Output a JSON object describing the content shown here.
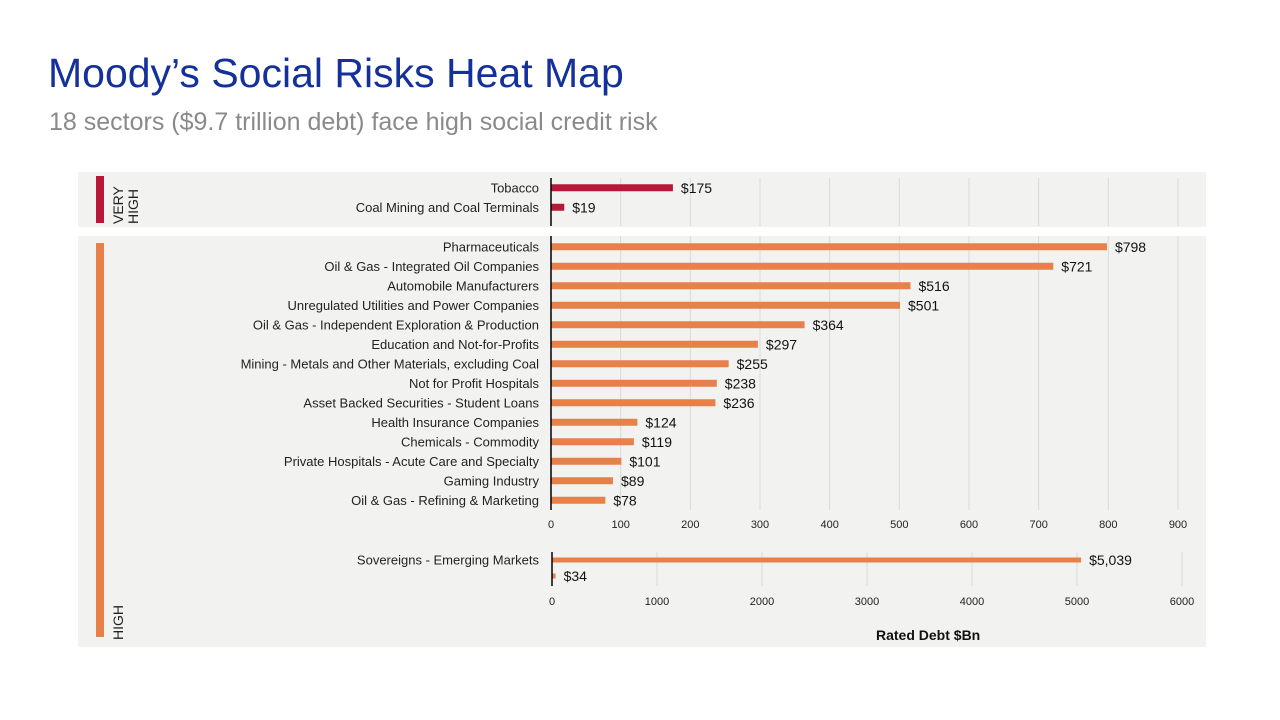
{
  "title": "Moody’s Social Risks Heat Map",
  "subtitle": "18 sectors ($9.7 trillion debt) face high social credit risk",
  "tiers": [
    {
      "label": "VERY\nHIGH",
      "color": "#b8173a"
    },
    {
      "label": "HIGH",
      "color": "#e8804a"
    }
  ],
  "colors": {
    "very_high": "#b8173a",
    "high": "#e8804a",
    "grid": "#d9d9d9",
    "panel": "#f2f3f1"
  },
  "xlabel": "Rated Debt $Bn",
  "chart_data": [
    {
      "type": "bar",
      "orientation": "horizontal",
      "xlim": [
        0,
        900
      ],
      "xticks": [
        0,
        100,
        200,
        300,
        400,
        500,
        600,
        700,
        800,
        900
      ],
      "show_ticks": false,
      "gridlines": true,
      "tier": "very_high",
      "categories": [
        "Tobacco",
        "Coal Mining and Coal Terminals"
      ],
      "values": [
        175,
        19
      ],
      "value_labels": [
        "$175",
        "$19"
      ]
    },
    {
      "type": "bar",
      "orientation": "horizontal",
      "xlim": [
        0,
        900
      ],
      "xticks": [
        0,
        100,
        200,
        300,
        400,
        500,
        600,
        700,
        800,
        900
      ],
      "show_ticks": true,
      "gridlines": true,
      "tier": "high",
      "categories": [
        "Pharmaceuticals",
        "Oil & Gas - Integrated Oil Companies",
        "Automobile Manufacturers",
        "Unregulated Utilities and Power Companies",
        "Oil & Gas - Independent Exploration & Production",
        "Education and Not-for-Profits",
        "Mining - Metals and Other Materials, excluding Coal",
        "Not for Profit Hospitals",
        "Asset Backed Securities - Student Loans",
        "Health Insurance Companies",
        "Chemicals - Commodity",
        "Private Hospitals - Acute Care and Specialty",
        "Gaming Industry",
        "Oil & Gas - Refining & Marketing"
      ],
      "values": [
        798,
        721,
        516,
        501,
        364,
        297,
        255,
        238,
        236,
        124,
        119,
        101,
        89,
        78
      ],
      "value_labels": [
        "$798",
        "$721",
        "$516",
        "$501",
        "$364",
        "$297",
        "$255",
        "$238",
        "$236",
        "$124",
        "$119",
        "$101",
        "$89",
        "$78"
      ]
    },
    {
      "type": "bar",
      "orientation": "horizontal",
      "xlim": [
        0,
        6000
      ],
      "xticks": [
        0,
        1000,
        2000,
        3000,
        4000,
        5000,
        6000
      ],
      "show_ticks": true,
      "gridlines": true,
      "tier": "high",
      "categories": [
        "Sovereigns - Emerging Markets",
        ""
      ],
      "values": [
        5039,
        34
      ],
      "value_labels": [
        "$5,039",
        "$34"
      ]
    }
  ]
}
